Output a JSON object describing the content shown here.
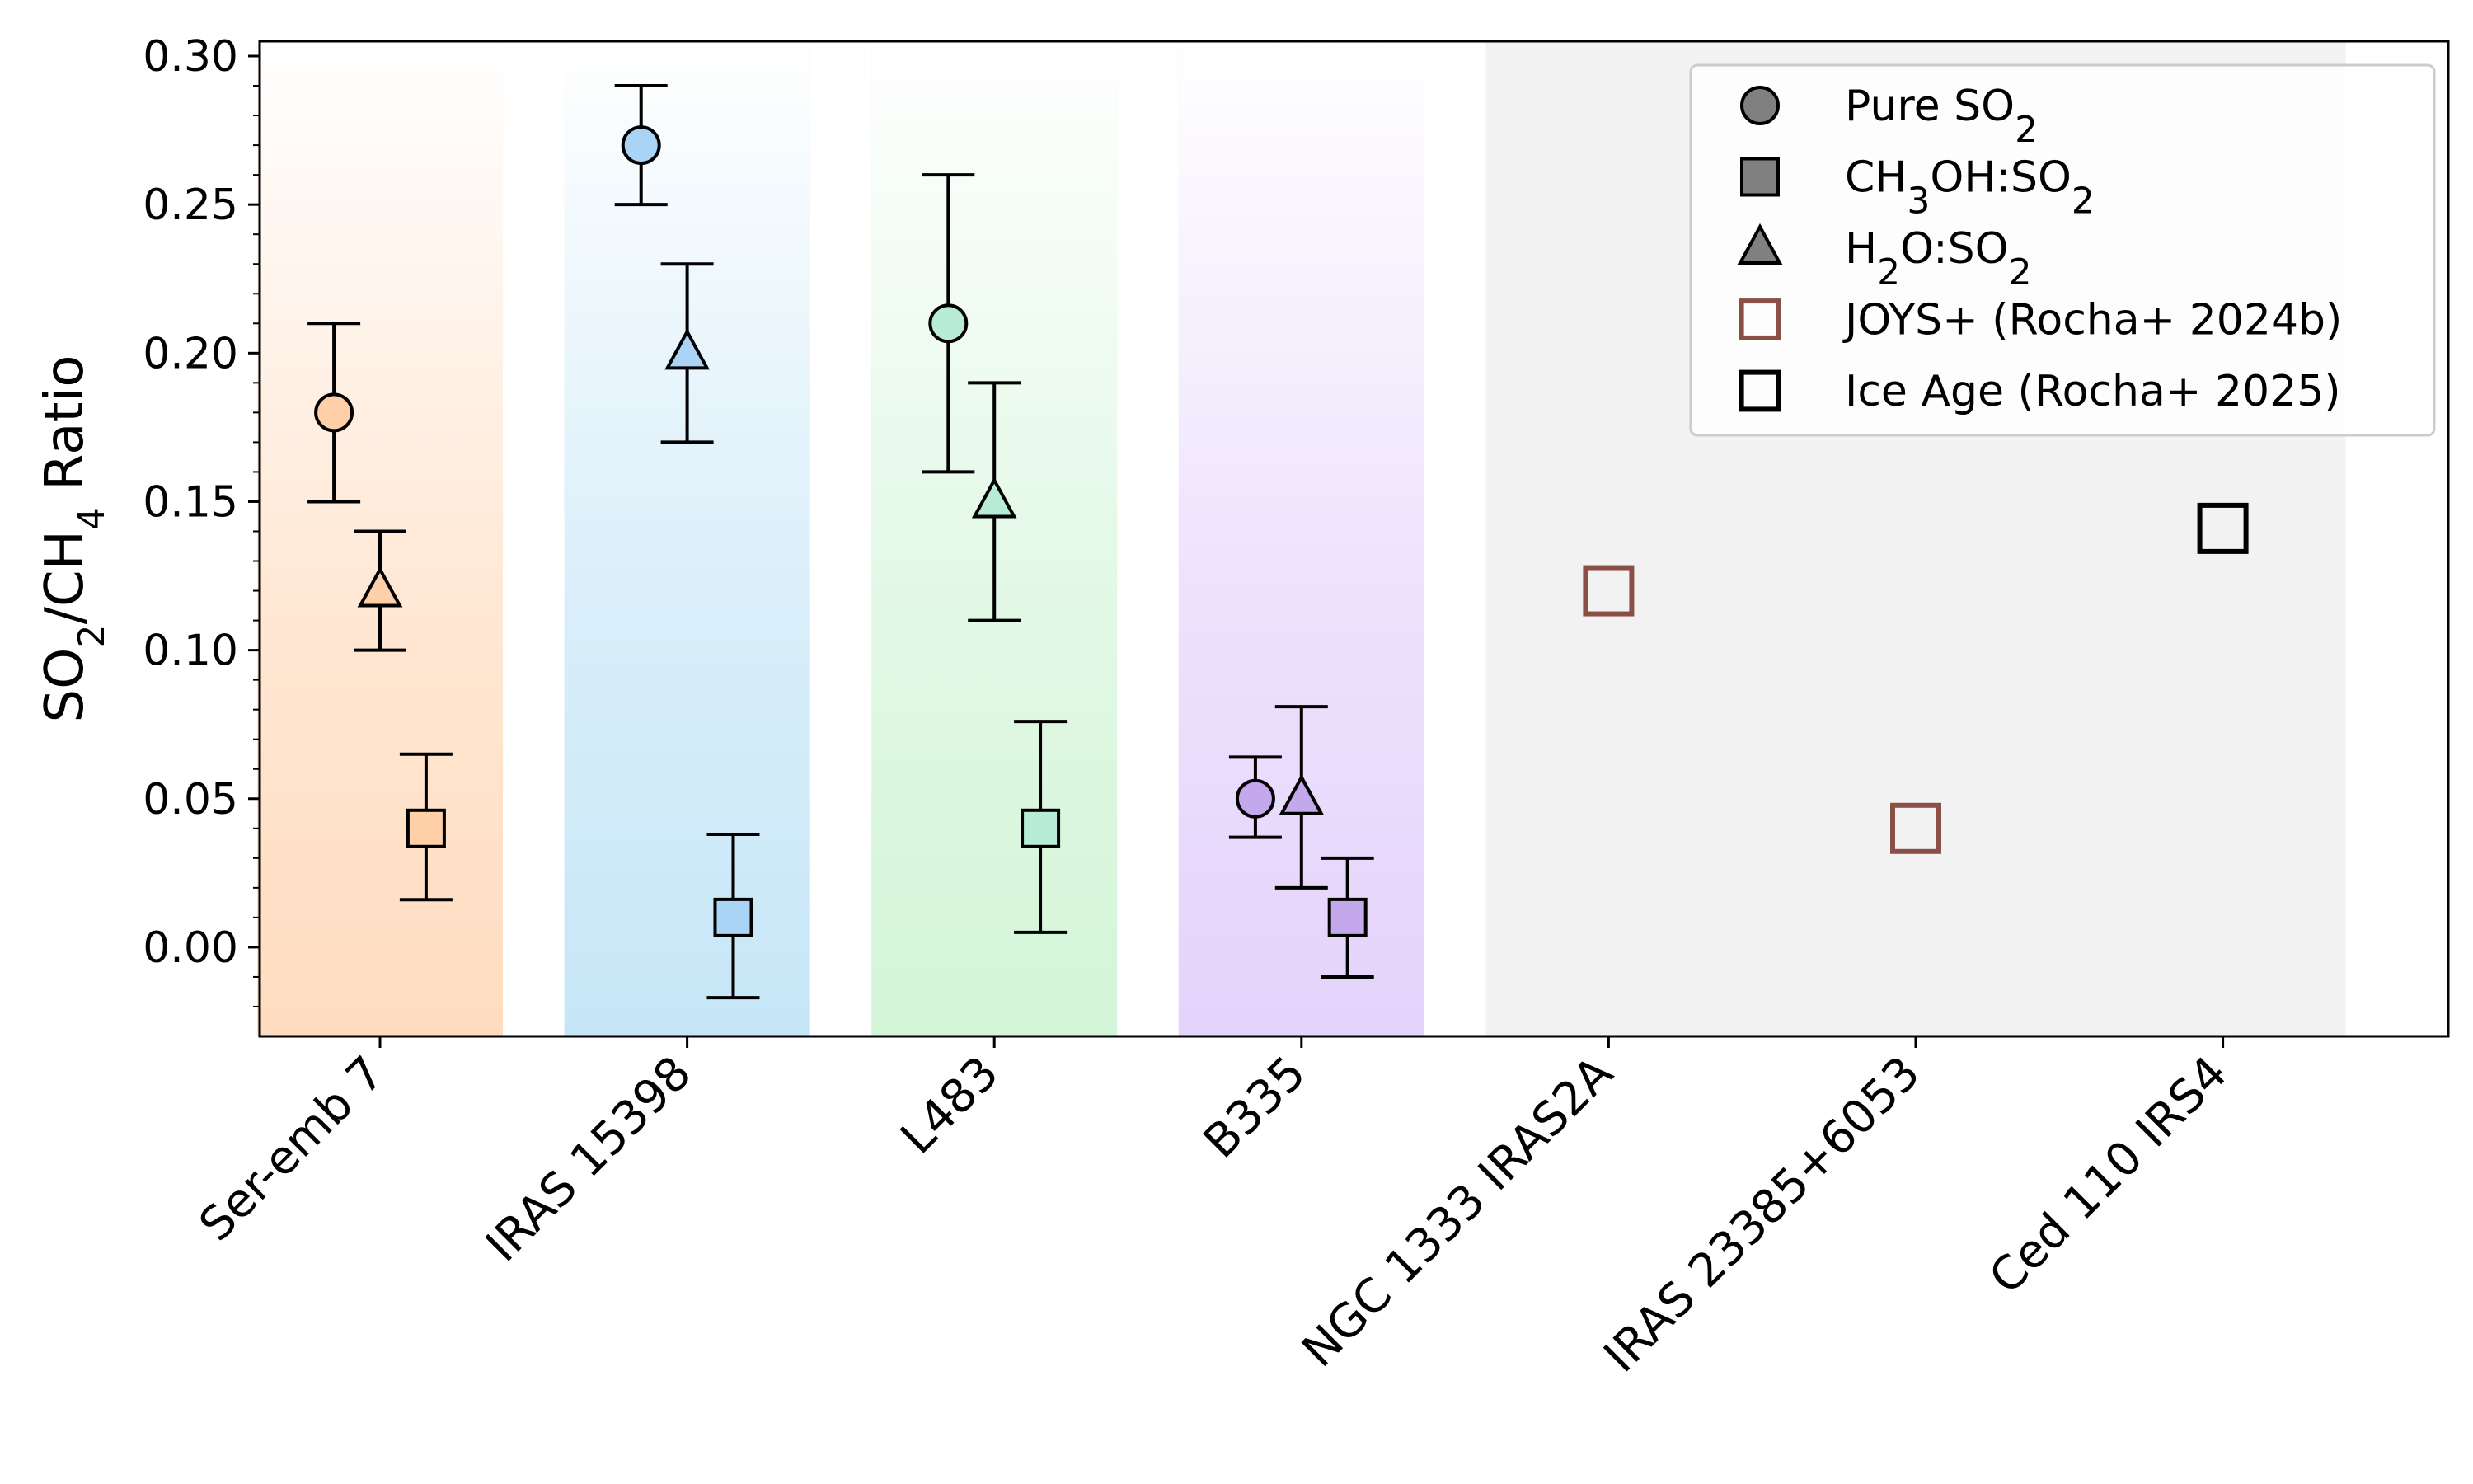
{
  "chart_data": {
    "type": "scatter",
    "ylabel_main": "SO",
    "ylabel_sub1": "2",
    "ylabel_mid": "/CH",
    "ylabel_sub2": "4",
    "ylabel_tail": " Ratio",
    "ylim": [
      -0.03,
      0.305
    ],
    "yticks": [
      "0.00",
      "0.05",
      "0.10",
      "0.15",
      "0.20",
      "0.25",
      "0.30"
    ],
    "ytick_values": [
      0.0,
      0.05,
      0.1,
      0.15,
      0.2,
      0.25,
      0.3
    ],
    "categories": [
      "Ser-emb 7",
      "IRAS 15398",
      "L483",
      "B335",
      "NGC 1333 IRAS2A",
      "IRAS 23385+6053",
      "Ced 110 IRS4"
    ],
    "bands": [
      {
        "category": "Ser-emb 7",
        "color": "#ffdcbf"
      },
      {
        "category": "IRAS 15398",
        "color": "#c6e6f7"
      },
      {
        "category": "L483",
        "color": "#d3f5d8"
      },
      {
        "category": "B335",
        "color": "#e4d3fb"
      }
    ],
    "grey_region": {
      "from_category": "NGC 1333 IRAS2A",
      "to_category": "Ced 110 IRS4",
      "color": "#f2f2f2"
    },
    "series": [
      {
        "name": "Pure SO2",
        "marker": "circle",
        "offset": -0.15,
        "points": [
          {
            "category": "Ser-emb 7",
            "y": 0.18,
            "lo": 0.15,
            "hi": 0.21,
            "color": "#ffd0a8"
          },
          {
            "category": "IRAS 15398",
            "y": 0.27,
            "lo": 0.25,
            "hi": 0.29,
            "color": "#a9d4f5"
          },
          {
            "category": "L483",
            "y": 0.21,
            "lo": 0.16,
            "hi": 0.26,
            "color": "#b8ecd6"
          },
          {
            "category": "B335",
            "y": 0.05,
            "lo": 0.037,
            "hi": 0.064,
            "color": "#c4a8ec"
          }
        ]
      },
      {
        "name": "H2O:SO2",
        "marker": "triangle",
        "offset": 0.0,
        "points": [
          {
            "category": "Ser-emb 7",
            "y": 0.12,
            "lo": 0.1,
            "hi": 0.14,
            "color": "#ffd0a8"
          },
          {
            "category": "IRAS 15398",
            "y": 0.2,
            "lo": 0.17,
            "hi": 0.23,
            "color": "#a9d4f5"
          },
          {
            "category": "L483",
            "y": 0.15,
            "lo": 0.11,
            "hi": 0.19,
            "color": "#b8ecd6"
          },
          {
            "category": "B335",
            "y": 0.05,
            "lo": 0.02,
            "hi": 0.081,
            "color": "#c4a8ec"
          }
        ]
      },
      {
        "name": "CH3OH:SO2",
        "marker": "square",
        "offset": 0.15,
        "points": [
          {
            "category": "Ser-emb 7",
            "y": 0.04,
            "lo": 0.016,
            "hi": 0.065,
            "color": "#ffd0a8"
          },
          {
            "category": "IRAS 15398",
            "y": 0.01,
            "lo": -0.017,
            "hi": 0.038,
            "color": "#a9d4f5"
          },
          {
            "category": "L483",
            "y": 0.04,
            "lo": 0.005,
            "hi": 0.076,
            "color": "#b8ecd6"
          },
          {
            "category": "B335",
            "y": 0.01,
            "lo": -0.01,
            "hi": 0.03,
            "color": "#c4a8ec"
          }
        ]
      },
      {
        "name": "JOYS+ (Rocha+ 2024b)",
        "marker": "open-square",
        "edge": "#8b5045",
        "points": [
          {
            "category": "NGC 1333 IRAS2A",
            "y": 0.12
          },
          {
            "category": "IRAS 23385+6053",
            "y": 0.04
          }
        ]
      },
      {
        "name": "Ice Age (Rocha+ 2025)",
        "marker": "open-square",
        "edge": "#000000",
        "points": [
          {
            "category": "Ced 110 IRS4",
            "y": 0.141
          }
        ]
      }
    ],
    "legend": {
      "placement": "top-right",
      "entries": [
        {
          "marker": "circle",
          "fill": "#808080",
          "edge": "#000000",
          "parts": [
            {
              "t": "Pure SO"
            },
            {
              "t": "2",
              "sub": true
            }
          ]
        },
        {
          "marker": "square",
          "fill": "#808080",
          "edge": "#000000",
          "parts": [
            {
              "t": "CH"
            },
            {
              "t": "3",
              "sub": true
            },
            {
              "t": "OH:SO"
            },
            {
              "t": "2",
              "sub": true
            }
          ]
        },
        {
          "marker": "triangle",
          "fill": "#808080",
          "edge": "#000000",
          "parts": [
            {
              "t": "H"
            },
            {
              "t": "2",
              "sub": true
            },
            {
              "t": "O:SO"
            },
            {
              "t": "2",
              "sub": true
            }
          ]
        },
        {
          "marker": "open-square",
          "fill": "none",
          "edge": "#8b5045",
          "parts": [
            {
              "t": "JOYS+ (Rocha+ 2024b)"
            }
          ]
        },
        {
          "marker": "open-square",
          "fill": "none",
          "edge": "#000000",
          "parts": [
            {
              "t": "Ice Age (Rocha+ 2025)"
            }
          ]
        }
      ]
    }
  }
}
